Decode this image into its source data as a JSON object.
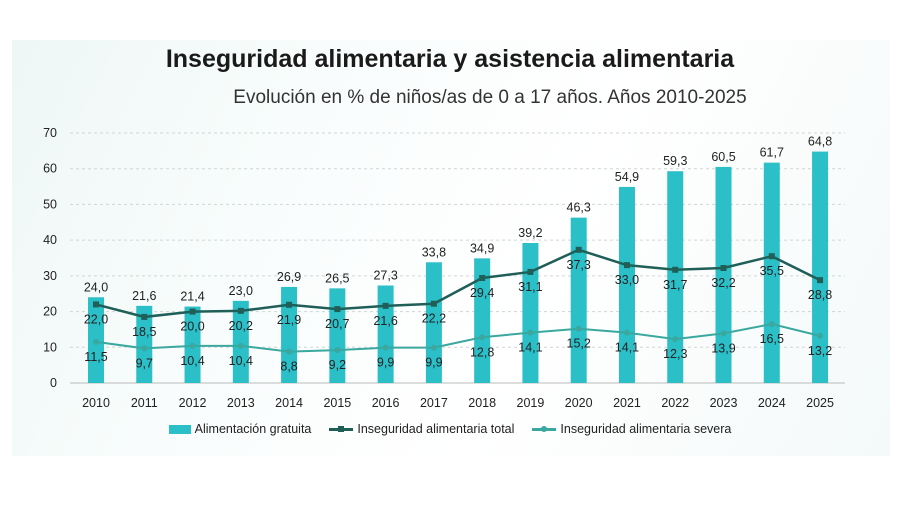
{
  "chart_data": {
    "type": "bar+line",
    "title": "Inseguridad alimentaria y asistencia alimentaria",
    "subtitle": "Evolución en % de niños/as de 0 a 17 años. Años 2010-2025",
    "categories": [
      "2010",
      "2011",
      "2012",
      "2013",
      "2014",
      "2015",
      "2016",
      "2017",
      "2018",
      "2019",
      "2020",
      "2021",
      "2022",
      "2023",
      "2024",
      "2025"
    ],
    "ylim": [
      0,
      70
    ],
    "yticks": [
      0,
      10,
      20,
      30,
      40,
      50,
      60,
      70
    ],
    "grid": true,
    "legend_position": "bottom",
    "series": [
      {
        "name": "Alimentación gratuita",
        "type": "bar",
        "color": "#2bbfc8",
        "values": [
          24.0,
          21.6,
          21.4,
          23.0,
          26.9,
          26.5,
          27.3,
          33.8,
          34.9,
          39.2,
          46.3,
          54.9,
          59.3,
          60.5,
          61.7,
          64.8
        ]
      },
      {
        "name": "Inseguridad alimentaria total",
        "type": "line",
        "color": "#1f5f57",
        "values": [
          22.0,
          18.5,
          20.0,
          20.2,
          21.9,
          20.7,
          21.6,
          22.2,
          29.4,
          31.1,
          37.3,
          33.0,
          31.7,
          32.2,
          35.5,
          28.8
        ]
      },
      {
        "name": "Inseguridad alimentaria severa",
        "type": "line",
        "color": "#3aa89f",
        "values": [
          11.5,
          9.7,
          10.4,
          10.4,
          8.8,
          9.2,
          9.9,
          9.9,
          12.8,
          14.1,
          15.2,
          14.1,
          12.3,
          13.9,
          16.5,
          13.2
        ]
      }
    ]
  }
}
